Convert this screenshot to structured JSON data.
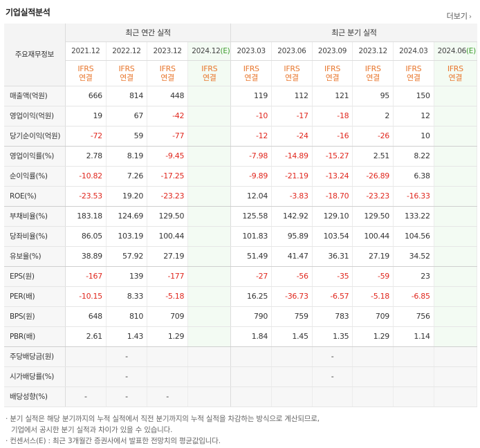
{
  "header": {
    "title": "기업실적분석",
    "more_label": "더보기",
    "more_icon": "chevron-right-icon"
  },
  "table": {
    "row_label_header": "주요재무정보",
    "group_annual": "최근 연간 실적",
    "group_quarter": "최근 분기 실적",
    "periods_annual": [
      "2021.12",
      "2022.12",
      "2023.12",
      "2024.12(E)"
    ],
    "periods_quarter": [
      "2023.03",
      "2023.06",
      "2023.09",
      "2023.12",
      "2024.03",
      "2024.06(E)"
    ],
    "basis_line1": "IFRS",
    "basis_line2": "연결",
    "rows": [
      {
        "label": "매출액(억원)",
        "values": [
          "666",
          "814",
          "448",
          "",
          "119",
          "112",
          "121",
          "95",
          "150",
          ""
        ]
      },
      {
        "label": "영업이익(억원)",
        "values": [
          "19",
          "67",
          "-42",
          "",
          "-10",
          "-17",
          "-18",
          "2",
          "12",
          ""
        ]
      },
      {
        "label": "당기순이익(억원)",
        "values": [
          "-72",
          "59",
          "-77",
          "",
          "-12",
          "-24",
          "-16",
          "-26",
          "10",
          ""
        ]
      },
      {
        "label": "영업이익률(%)",
        "values": [
          "2.78",
          "8.19",
          "-9.45",
          "",
          "-7.98",
          "-14.89",
          "-15.27",
          "2.51",
          "8.22",
          ""
        ]
      },
      {
        "label": "순이익률(%)",
        "values": [
          "-10.82",
          "7.26",
          "-17.25",
          "",
          "-9.89",
          "-21.19",
          "-13.24",
          "-26.89",
          "6.38",
          ""
        ]
      },
      {
        "label": "ROE(%)",
        "values": [
          "-23.53",
          "19.20",
          "-23.23",
          "",
          "12.04",
          "-3.83",
          "-18.70",
          "-23.23",
          "-16.33",
          ""
        ]
      },
      {
        "label": "부채비율(%)",
        "values": [
          "183.18",
          "124.69",
          "129.50",
          "",
          "125.58",
          "142.92",
          "129.10",
          "129.50",
          "133.22",
          ""
        ]
      },
      {
        "label": "당좌비율(%)",
        "values": [
          "86.05",
          "103.19",
          "100.44",
          "",
          "101.83",
          "95.89",
          "103.54",
          "100.44",
          "104.56",
          ""
        ]
      },
      {
        "label": "유보율(%)",
        "values": [
          "38.89",
          "57.92",
          "27.19",
          "",
          "51.49",
          "41.47",
          "36.31",
          "27.19",
          "34.52",
          ""
        ]
      },
      {
        "label": "EPS(원)",
        "values": [
          "-167",
          "139",
          "-177",
          "",
          "-27",
          "-56",
          "-35",
          "-59",
          "23",
          ""
        ]
      },
      {
        "label": "PER(배)",
        "values": [
          "-10.15",
          "8.33",
          "-5.18",
          "",
          "16.25",
          "-36.73",
          "-6.57",
          "-5.18",
          "-6.85",
          ""
        ]
      },
      {
        "label": "BPS(원)",
        "values": [
          "648",
          "810",
          "709",
          "",
          "790",
          "759",
          "783",
          "709",
          "756",
          ""
        ]
      },
      {
        "label": "PBR(배)",
        "values": [
          "2.61",
          "1.43",
          "1.29",
          "",
          "1.84",
          "1.45",
          "1.35",
          "1.29",
          "1.14",
          ""
        ]
      },
      {
        "label": "주당배당금(원)",
        "values": [
          "",
          "-",
          "",
          "",
          "",
          "",
          "-",
          "",
          "",
          ""
        ]
      },
      {
        "label": "시가배당률(%)",
        "values": [
          "",
          "-",
          "",
          "",
          "",
          "",
          "-",
          "",
          "",
          ""
        ]
      },
      {
        "label": "배당성향(%)",
        "values": [
          "-",
          "-",
          "-",
          "",
          "",
          "",
          "",
          "",
          "",
          ""
        ]
      }
    ]
  },
  "notes": {
    "line1": "· 분기 실적은 해당 분기까지의 누적 실적에서 직전 분기까지의 누적 실적을 차감하는 방식으로 계산되므로,",
    "line2": "기업에서 공시한 분기 실적과 차이가 있을 수 있습니다.",
    "line3": "· 컨센서스(E) : 최근 3개월간 증권사에서 발표한 전망치의 평균값입니다."
  },
  "colors": {
    "negative": "#e0261d",
    "ifrs_orange": "#e8762c",
    "estimate_green_bg": "#f3fbf3",
    "estimate_green_text": "#3a9a2a"
  }
}
